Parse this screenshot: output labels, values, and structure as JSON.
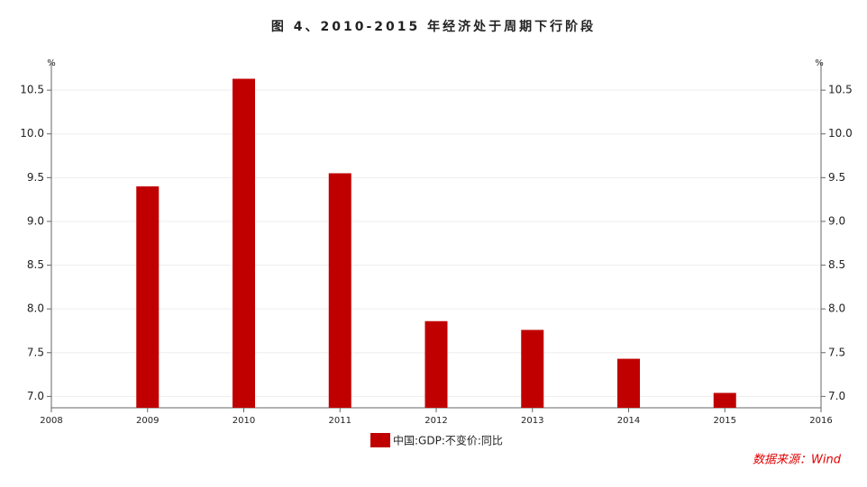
{
  "chart_data": {
    "type": "bar",
    "title": "图 4、2010-2015 年经济处于周期下行阶段",
    "y_unit": "%",
    "y2_unit": "%",
    "series": [
      {
        "name": "中国:GDP:不变价:同比",
        "color": "#c00000",
        "x": [
          2009,
          2010,
          2011,
          2012,
          2013,
          2014,
          2015
        ],
        "values": [
          9.4,
          10.63,
          9.55,
          7.86,
          7.76,
          7.43,
          7.04
        ]
      }
    ],
    "xlim": [
      2008,
      2016
    ],
    "xticks": [
      2008,
      2009,
      2010,
      2011,
      2012,
      2013,
      2014,
      2015,
      2016
    ],
    "ylim": [
      6.87,
      10.81
    ],
    "yticks": [
      {
        "value": 7,
        "label": "7.0"
      },
      7.5,
      {
        "value": 8,
        "label": "8.0"
      },
      8.5,
      {
        "value": 9,
        "label": "9.0"
      },
      9.5,
      {
        "value": 10,
        "label": "10.0"
      },
      10.5
    ],
    "y2lim": [
      6.87,
      10.81
    ],
    "y2ticks": [
      {
        "value": 7,
        "label": "7.0"
      },
      7.5,
      {
        "value": 8,
        "label": "8.0"
      },
      8.5,
      {
        "value": 9,
        "label": "9.0"
      },
      9.5,
      {
        "value": 10,
        "label": "10.0"
      },
      10.5
    ],
    "grid": true,
    "legend": "bottom",
    "source": "数据来源：Wind"
  }
}
